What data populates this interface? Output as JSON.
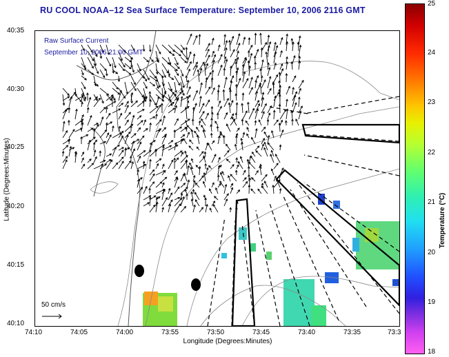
{
  "title": "RU COOL  NOAA–12  Sea Surface Temperature:  September 10, 2006 2116 GMT",
  "legend": {
    "line1": "Raw Surface Current",
    "line2": "September 10, 2006 21:00 GMT"
  },
  "scale_label": "50 cm/s",
  "axes": {
    "ylabel": "Latitude (Degrees:Minutes)",
    "xlabel": "Longitude (Degrees:Minutes)",
    "yticks": [
      "40:35",
      "40:30",
      "40:25",
      "40:20",
      "40:15",
      "40:10"
    ],
    "xticks": [
      "74:10",
      "74:05",
      "74:00",
      "73:55",
      "73:50",
      "73:45",
      "73:40",
      "73:35",
      "73:3"
    ]
  },
  "colorbar": {
    "title": "Temperature (°C)",
    "ticks": [
      "25",
      "24",
      "23",
      "22",
      "21",
      "20",
      "19",
      "18"
    ],
    "min": 18,
    "max": 25
  },
  "colors": {
    "title": "#1a1aa0",
    "vectors": "#000000",
    "bathymetry": "#888888"
  }
}
